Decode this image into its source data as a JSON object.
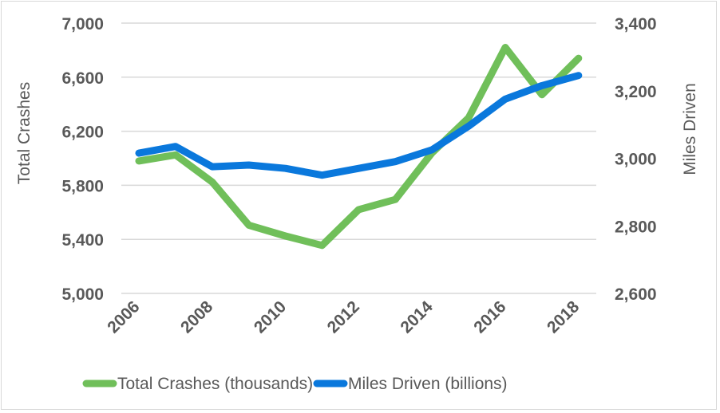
{
  "chart_data": {
    "type": "line",
    "title": "",
    "x": [
      2006,
      2007,
      2008,
      2009,
      2010,
      2011,
      2012,
      2013,
      2014,
      2015,
      2016,
      2017,
      2018
    ],
    "x_tick_labels": [
      "2006",
      "2008",
      "2010",
      "2012",
      "2014",
      "2016",
      "2018"
    ],
    "x_tick_values": [
      2006,
      2008,
      2010,
      2012,
      2014,
      2016,
      2018
    ],
    "xlabel": "",
    "ylabel": "Total Crashes",
    "ylabel_right": "Miles Driven",
    "ylim": [
      5000,
      7000
    ],
    "ylim_right": [
      2600,
      3400
    ],
    "y_tick_labels": [
      "5,000",
      "5,400",
      "5,800",
      "6,200",
      "6,600",
      "7,000"
    ],
    "y_tick_values": [
      5000,
      5400,
      5800,
      6200,
      6600,
      7000
    ],
    "y_right_tick_labels": [
      "2,600",
      "2,800",
      "3,000",
      "3,200",
      "3,400"
    ],
    "y_right_tick_values": [
      2600,
      2800,
      3000,
      3200,
      3400
    ],
    "grid": true,
    "legend_position": "bottom",
    "series": [
      {
        "name": "Total Crashes (thousands)",
        "axis": "left",
        "color": "#70bf5a",
        "values": [
          5980,
          6025,
          5825,
          5505,
          5425,
          5355,
          5620,
          5695,
          6040,
          6300,
          6820,
          6470,
          6740
        ]
      },
      {
        "name": "Miles Driven (billions)",
        "axis": "right",
        "color": "#0a78dc",
        "values": [
          3015,
          3035,
          2975,
          2980,
          2970,
          2950,
          2970,
          2990,
          3025,
          3095,
          3175,
          3215,
          3245
        ]
      }
    ]
  }
}
